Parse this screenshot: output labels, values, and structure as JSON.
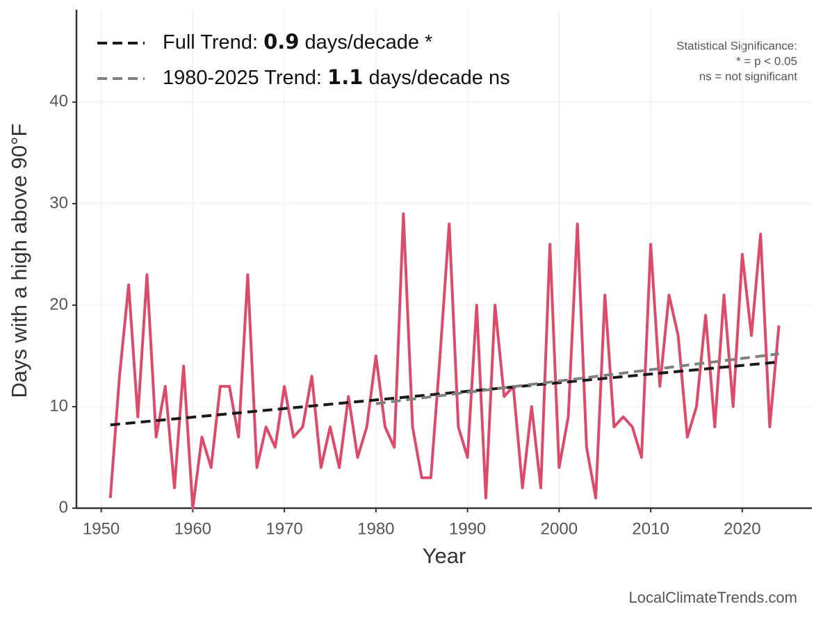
{
  "chart_data": {
    "type": "line",
    "x_label": "Year",
    "y_label": "Days with a high above 90°F",
    "annotation": [
      "Statistical Significance:",
      "* = p < 0.05",
      "ns = not significant"
    ],
    "source": "LocalClimateTrends.com",
    "xlim": [
      1947.3,
      2027.6
    ],
    "ylim": [
      0,
      49.1
    ],
    "xticks": [
      1950,
      1960,
      1970,
      1980,
      1990,
      2000,
      2010,
      2020
    ],
    "yticks": [
      0,
      10,
      20,
      30,
      40
    ],
    "grid": true,
    "legend": "upper left",
    "series": [
      {
        "color": "#dd4b6b",
        "style": "solid",
        "x": [
          1951,
          1952,
          1953,
          1954,
          1955,
          1956,
          1957,
          1958,
          1959,
          1960,
          1961,
          1962,
          1963,
          1964,
          1965,
          1966,
          1967,
          1968,
          1969,
          1970,
          1971,
          1972,
          1973,
          1974,
          1975,
          1976,
          1977,
          1978,
          1979,
          1980,
          1981,
          1982,
          1983,
          1984,
          1985,
          1986,
          1987,
          1988,
          1989,
          1990,
          1991,
          1992,
          1993,
          1994,
          1995,
          1996,
          1997,
          1998,
          1999,
          2000,
          2001,
          2002,
          2003,
          2004,
          2005,
          2006,
          2007,
          2008,
          2009,
          2010,
          2011,
          2012,
          2013,
          2014,
          2015,
          2016,
          2017,
          2018,
          2019,
          2020,
          2021,
          2022,
          2023,
          2024
        ],
        "values": [
          1,
          13,
          22,
          9,
          23,
          7,
          12,
          2,
          14,
          0,
          7,
          4,
          12,
          12,
          7,
          23,
          4,
          8,
          6,
          12,
          7,
          8,
          13,
          4,
          8,
          4,
          11,
          5,
          8,
          15,
          8,
          6,
          29,
          8,
          3,
          3,
          15,
          28,
          8,
          5,
          20,
          1,
          20,
          11,
          12,
          2,
          10,
          2,
          26,
          4,
          9,
          28,
          6,
          1,
          21,
          8,
          9,
          8,
          5,
          26,
          12,
          21,
          17,
          7,
          10,
          19,
          8,
          21,
          10,
          25,
          17,
          27,
          8,
          18
        ]
      },
      {
        "name": "Full Trend: 0.9 days/decade *",
        "color": "#1a1a1a",
        "style": "dashed",
        "x": [
          1951,
          2024
        ],
        "values": [
          8.2,
          14.4
        ]
      },
      {
        "name": "1980-2025 Trend: 1.1 days/decade ns",
        "color": "#808080",
        "style": "dashed",
        "x": [
          1980,
          2024
        ],
        "values": [
          10.3,
          15.2
        ]
      }
    ]
  }
}
